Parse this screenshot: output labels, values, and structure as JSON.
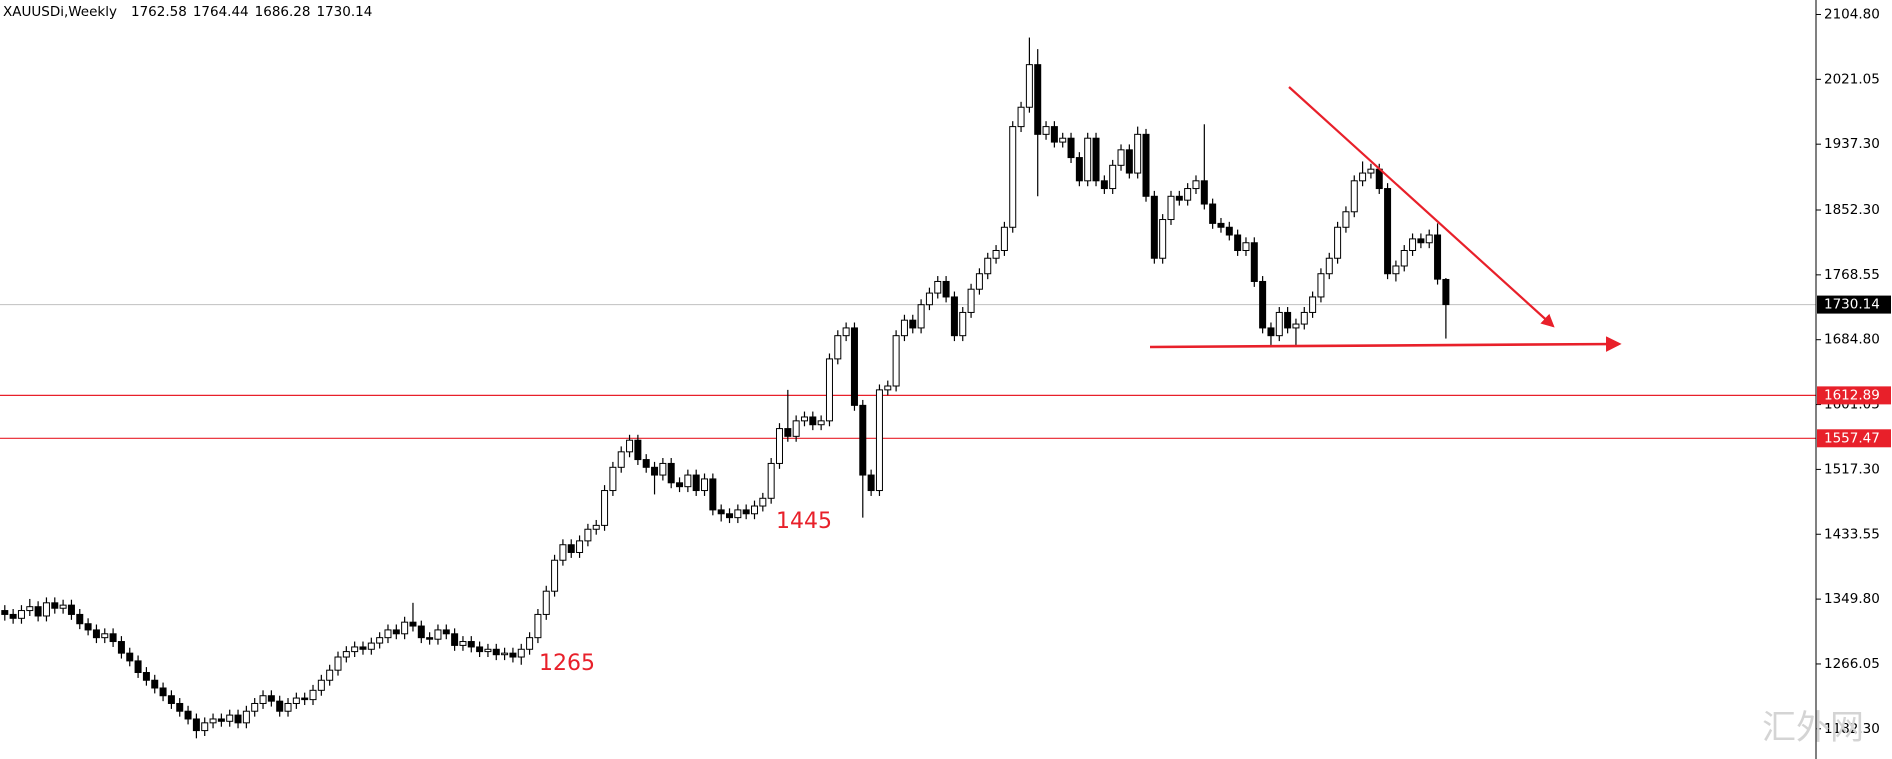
{
  "chart_data": {
    "type": "candlestick",
    "title": "XAUUSDi,Weekly",
    "up_color": "#ffffff",
    "down_color": "#000000",
    "ylim": [
      1143.3,
      2123.5
    ],
    "yticks": [
      {
        "value": 2104.8,
        "label": "2104.80"
      },
      {
        "value": 2021.05,
        "label": "2021.05"
      },
      {
        "value": 1937.3,
        "label": "1937.30"
      },
      {
        "value": 1852.3,
        "label": "1852.30"
      },
      {
        "value": 1768.55,
        "label": "1768.55"
      },
      {
        "value": 1684.8,
        "label": "1684.80"
      },
      {
        "value": 1601.05,
        "label": "1601.05"
      },
      {
        "value": 1517.3,
        "label": "1517.30"
      },
      {
        "value": 1433.55,
        "label": "1433.55"
      },
      {
        "value": 1349.8,
        "label": "1349.80"
      },
      {
        "value": 1266.05,
        "label": "1266.05"
      },
      {
        "value": 1182.3,
        "label": "1182.30"
      }
    ],
    "hlines": [
      {
        "value": 1612.89,
        "color": "#e8202a"
      },
      {
        "value": 1557.47,
        "color": "#e8202a"
      }
    ],
    "annotations": [
      "1265",
      "1445"
    ],
    "watermark": "汇外网",
    "ohlc": [
      [
        1335,
        1342,
        1322,
        1330
      ],
      [
        1330,
        1337,
        1318,
        1325
      ],
      [
        1325,
        1342,
        1318,
        1335
      ],
      [
        1335,
        1350,
        1328,
        1340
      ],
      [
        1340,
        1347,
        1321,
        1328
      ],
      [
        1328,
        1352,
        1321,
        1345
      ],
      [
        1345,
        1352,
        1331,
        1338
      ],
      [
        1338,
        1349,
        1331,
        1342
      ],
      [
        1342,
        1349,
        1323,
        1330
      ],
      [
        1330,
        1337,
        1311,
        1318
      ],
      [
        1318,
        1325,
        1303,
        1310
      ],
      [
        1310,
        1317,
        1293,
        1300
      ],
      [
        1300,
        1312,
        1293,
        1305
      ],
      [
        1305,
        1312,
        1288,
        1295
      ],
      [
        1295,
        1302,
        1273,
        1280
      ],
      [
        1280,
        1287,
        1263,
        1270
      ],
      [
        1270,
        1277,
        1248,
        1255
      ],
      [
        1255,
        1262,
        1238,
        1245
      ],
      [
        1245,
        1252,
        1228,
        1235
      ],
      [
        1235,
        1242,
        1218,
        1225
      ],
      [
        1225,
        1232,
        1208,
        1215
      ],
      [
        1215,
        1222,
        1198,
        1205
      ],
      [
        1205,
        1212,
        1188,
        1195
      ],
      [
        1195,
        1202,
        1170,
        1180
      ],
      [
        1180,
        1197,
        1173,
        1190
      ],
      [
        1190,
        1202,
        1183,
        1195
      ],
      [
        1195,
        1202,
        1185,
        1192
      ],
      [
        1192,
        1207,
        1185,
        1200
      ],
      [
        1200,
        1207,
        1183,
        1190
      ],
      [
        1190,
        1212,
        1183,
        1205
      ],
      [
        1205,
        1222,
        1198,
        1215
      ],
      [
        1215,
        1232,
        1208,
        1225
      ],
      [
        1225,
        1232,
        1211,
        1218
      ],
      [
        1218,
        1225,
        1198,
        1205
      ],
      [
        1205,
        1222,
        1198,
        1215
      ],
      [
        1215,
        1229,
        1208,
        1222
      ],
      [
        1222,
        1229,
        1213,
        1220
      ],
      [
        1220,
        1239,
        1213,
        1232
      ],
      [
        1232,
        1252,
        1225,
        1245
      ],
      [
        1245,
        1265,
        1238,
        1258
      ],
      [
        1258,
        1282,
        1251,
        1275
      ],
      [
        1275,
        1289,
        1268,
        1282
      ],
      [
        1282,
        1295,
        1275,
        1288
      ],
      [
        1288,
        1295,
        1278,
        1285
      ],
      [
        1285,
        1300,
        1278,
        1293
      ],
      [
        1293,
        1307,
        1286,
        1300
      ],
      [
        1300,
        1317,
        1293,
        1310
      ],
      [
        1310,
        1317,
        1298,
        1305
      ],
      [
        1305,
        1327,
        1298,
        1320
      ],
      [
        1320,
        1345,
        1308,
        1315
      ],
      [
        1315,
        1322,
        1293,
        1300
      ],
      [
        1300,
        1307,
        1291,
        1298
      ],
      [
        1298,
        1317,
        1291,
        1310
      ],
      [
        1310,
        1317,
        1298,
        1305
      ],
      [
        1305,
        1312,
        1283,
        1290
      ],
      [
        1290,
        1302,
        1283,
        1295
      ],
      [
        1295,
        1302,
        1281,
        1288
      ],
      [
        1288,
        1295,
        1275,
        1282
      ],
      [
        1282,
        1292,
        1275,
        1285
      ],
      [
        1285,
        1292,
        1271,
        1278
      ],
      [
        1278,
        1287,
        1271,
        1280
      ],
      [
        1280,
        1287,
        1268,
        1275
      ],
      [
        1275,
        1292,
        1265,
        1285
      ],
      [
        1285,
        1307,
        1278,
        1300
      ],
      [
        1300,
        1337,
        1293,
        1330
      ],
      [
        1330,
        1367,
        1323,
        1360
      ],
      [
        1360,
        1407,
        1353,
        1400
      ],
      [
        1400,
        1427,
        1393,
        1420
      ],
      [
        1420,
        1427,
        1403,
        1410
      ],
      [
        1410,
        1432,
        1403,
        1425
      ],
      [
        1425,
        1447,
        1418,
        1440
      ],
      [
        1440,
        1452,
        1433,
        1445
      ],
      [
        1445,
        1497,
        1438,
        1490
      ],
      [
        1490,
        1527,
        1483,
        1520
      ],
      [
        1520,
        1547,
        1513,
        1540
      ],
      [
        1540,
        1562,
        1533,
        1555
      ],
      [
        1555,
        1562,
        1523,
        1530
      ],
      [
        1530,
        1537,
        1513,
        1520
      ],
      [
        1520,
        1527,
        1485,
        1510
      ],
      [
        1510,
        1532,
        1503,
        1525
      ],
      [
        1525,
        1532,
        1493,
        1500
      ],
      [
        1500,
        1507,
        1488,
        1495
      ],
      [
        1495,
        1517,
        1488,
        1510
      ],
      [
        1510,
        1517,
        1483,
        1490
      ],
      [
        1490,
        1512,
        1483,
        1505
      ],
      [
        1505,
        1512,
        1458,
        1465
      ],
      [
        1465,
        1472,
        1450,
        1460
      ],
      [
        1460,
        1467,
        1448,
        1455
      ],
      [
        1455,
        1472,
        1448,
        1465
      ],
      [
        1465,
        1472,
        1453,
        1460
      ],
      [
        1460,
        1477,
        1453,
        1470
      ],
      [
        1470,
        1487,
        1463,
        1480
      ],
      [
        1480,
        1532,
        1473,
        1525
      ],
      [
        1525,
        1577,
        1518,
        1570
      ],
      [
        1570,
        1620,
        1553,
        1560
      ],
      [
        1560,
        1587,
        1553,
        1580
      ],
      [
        1580,
        1592,
        1573,
        1585
      ],
      [
        1585,
        1592,
        1568,
        1575
      ],
      [
        1575,
        1587,
        1568,
        1580
      ],
      [
        1580,
        1667,
        1573,
        1660
      ],
      [
        1660,
        1697,
        1653,
        1690
      ],
      [
        1690,
        1707,
        1683,
        1700
      ],
      [
        1700,
        1707,
        1593,
        1600
      ],
      [
        1600,
        1607,
        1455,
        1510
      ],
      [
        1510,
        1517,
        1483,
        1490
      ],
      [
        1490,
        1627,
        1483,
        1620
      ],
      [
        1620,
        1632,
        1613,
        1625
      ],
      [
        1625,
        1697,
        1618,
        1690
      ],
      [
        1690,
        1717,
        1683,
        1710
      ],
      [
        1710,
        1717,
        1693,
        1700
      ],
      [
        1700,
        1737,
        1693,
        1730
      ],
      [
        1730,
        1752,
        1723,
        1745
      ],
      [
        1745,
        1767,
        1738,
        1760
      ],
      [
        1760,
        1767,
        1733,
        1740
      ],
      [
        1740,
        1747,
        1683,
        1690
      ],
      [
        1690,
        1727,
        1683,
        1720
      ],
      [
        1720,
        1757,
        1713,
        1750
      ],
      [
        1750,
        1777,
        1743,
        1770
      ],
      [
        1770,
        1797,
        1763,
        1790
      ],
      [
        1790,
        1807,
        1783,
        1800
      ],
      [
        1800,
        1837,
        1793,
        1830
      ],
      [
        1830,
        1967,
        1823,
        1960
      ],
      [
        1960,
        1992,
        1953,
        1985
      ],
      [
        1985,
        2075,
        1978,
        2040
      ],
      [
        2040,
        2060,
        1870,
        1950
      ],
      [
        1950,
        1967,
        1943,
        1960
      ],
      [
        1960,
        1967,
        1933,
        1940
      ],
      [
        1940,
        1952,
        1933,
        1945
      ],
      [
        1945,
        1952,
        1913,
        1920
      ],
      [
        1920,
        1927,
        1883,
        1890
      ],
      [
        1890,
        1952,
        1883,
        1945
      ],
      [
        1945,
        1952,
        1883,
        1890
      ],
      [
        1890,
        1897,
        1873,
        1880
      ],
      [
        1880,
        1917,
        1873,
        1910
      ],
      [
        1910,
        1937,
        1903,
        1930
      ],
      [
        1930,
        1937,
        1893,
        1900
      ],
      [
        1900,
        1960,
        1893,
        1950
      ],
      [
        1950,
        1957,
        1863,
        1870
      ],
      [
        1870,
        1877,
        1783,
        1790
      ],
      [
        1790,
        1847,
        1783,
        1840
      ],
      [
        1840,
        1877,
        1833,
        1870
      ],
      [
        1870,
        1877,
        1858,
        1865
      ],
      [
        1865,
        1887,
        1858,
        1880
      ],
      [
        1880,
        1897,
        1873,
        1890
      ],
      [
        1890,
        1963,
        1853,
        1860
      ],
      [
        1860,
        1867,
        1828,
        1835
      ],
      [
        1835,
        1842,
        1823,
        1830
      ],
      [
        1830,
        1837,
        1813,
        1820
      ],
      [
        1820,
        1827,
        1793,
        1800
      ],
      [
        1800,
        1817,
        1793,
        1810
      ],
      [
        1810,
        1817,
        1753,
        1760
      ],
      [
        1760,
        1767,
        1693,
        1700
      ],
      [
        1700,
        1707,
        1678,
        1690
      ],
      [
        1690,
        1727,
        1683,
        1720
      ],
      [
        1720,
        1727,
        1693,
        1700
      ],
      [
        1700,
        1712,
        1678,
        1705
      ],
      [
        1705,
        1727,
        1698,
        1720
      ],
      [
        1720,
        1747,
        1713,
        1740
      ],
      [
        1740,
        1777,
        1733,
        1770
      ],
      [
        1770,
        1797,
        1763,
        1790
      ],
      [
        1790,
        1837,
        1783,
        1830
      ],
      [
        1830,
        1857,
        1823,
        1850
      ],
      [
        1850,
        1897,
        1843,
        1890
      ],
      [
        1890,
        1915,
        1883,
        1900
      ],
      [
        1900,
        1912,
        1893,
        1905
      ],
      [
        1905,
        1912,
        1873,
        1880
      ],
      [
        1880,
        1887,
        1763,
        1770
      ],
      [
        1770,
        1787,
        1760,
        1780
      ],
      [
        1780,
        1807,
        1773,
        1800
      ],
      [
        1800,
        1822,
        1793,
        1815
      ],
      [
        1815,
        1822,
        1803,
        1810
      ],
      [
        1810,
        1827,
        1803,
        1820
      ],
      [
        1820,
        1835,
        1756,
        1763
      ],
      [
        1762.58,
        1764.44,
        1686.28,
        1730.14
      ]
    ]
  }
}
